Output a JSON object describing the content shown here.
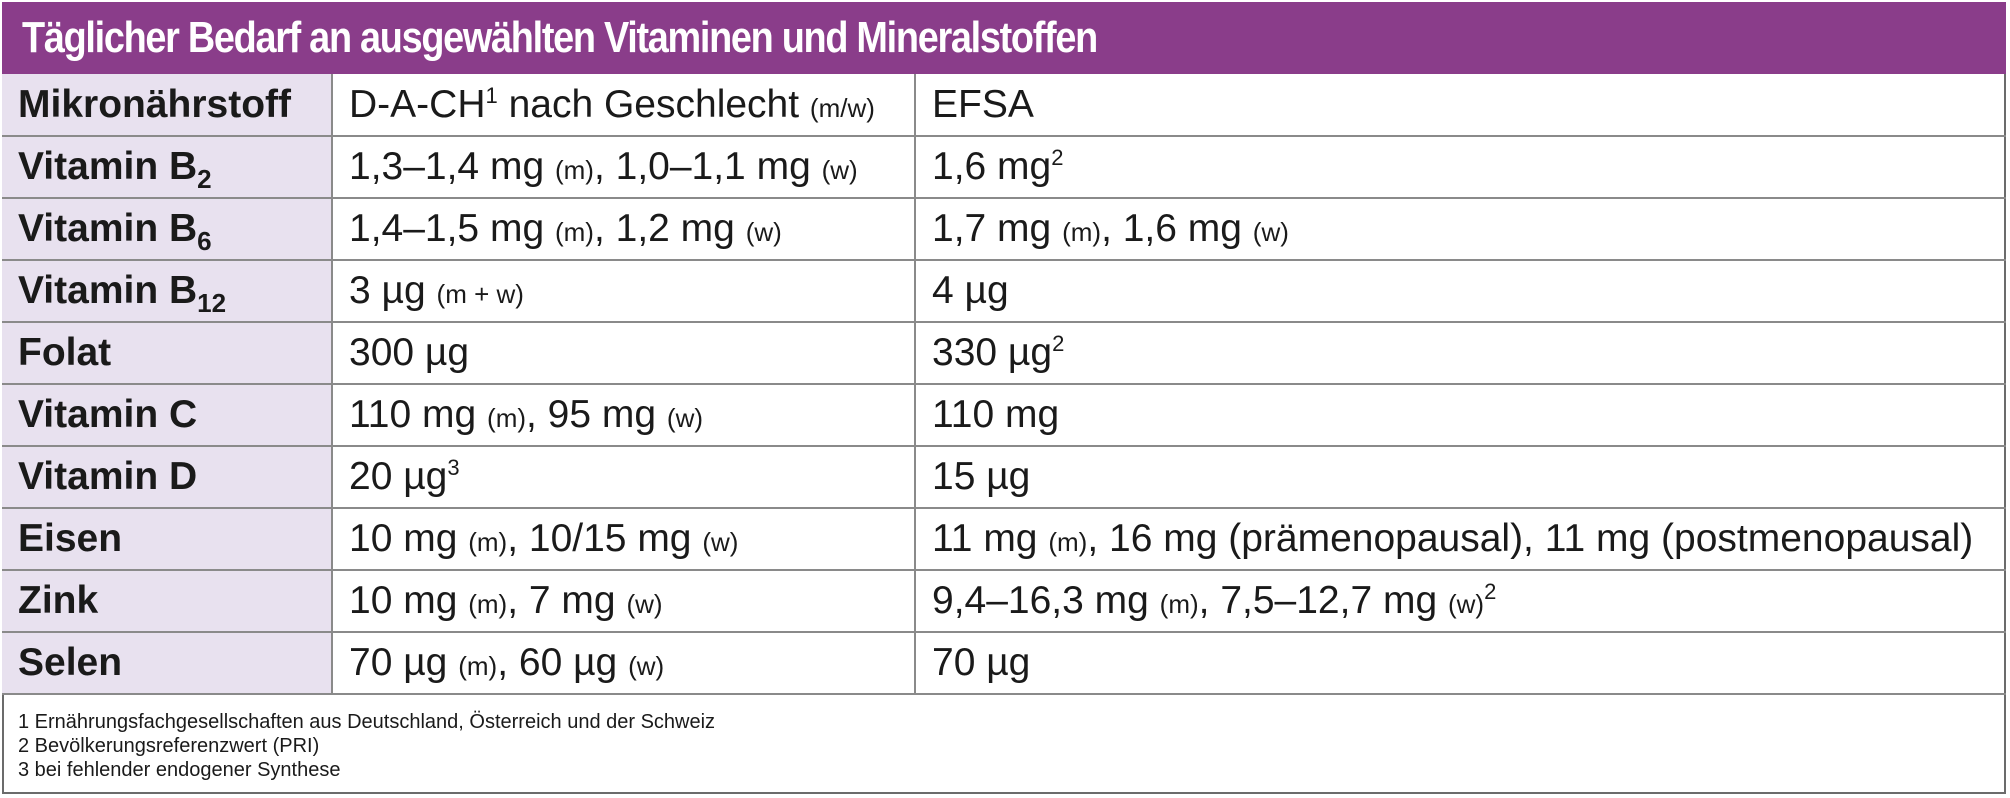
{
  "title": "Täglicher Bedarf an ausgewählten Vitaminen und Mineralstoffen",
  "header": {
    "col1": "Mikronährstoff",
    "col2_main": "D-A-CH",
    "col2_sup": "1",
    "col2_rest": " nach Geschlecht ",
    "col2_small": "(m/w)",
    "col3": "EFSA"
  },
  "rows": [
    {
      "name": "Vitamin B",
      "sub": "2",
      "dach": [
        {
          "t": "1,3–1,4 mg "
        },
        {
          "t": "(m)",
          "s": "sm"
        },
        {
          "t": ", 1,0–1,1 mg "
        },
        {
          "t": "(w)",
          "s": "sm"
        }
      ],
      "efsa": [
        {
          "t": "1,6 mg"
        },
        {
          "t": "2",
          "s": "sup"
        }
      ]
    },
    {
      "name": "Vitamin B",
      "sub": "6",
      "dach": [
        {
          "t": "1,4–1,5 mg "
        },
        {
          "t": "(m)",
          "s": "sm"
        },
        {
          "t": ", 1,2 mg "
        },
        {
          "t": "(w)",
          "s": "sm"
        }
      ],
      "efsa": [
        {
          "t": "1,7 mg "
        },
        {
          "t": "(m)",
          "s": "sm"
        },
        {
          "t": ", 1,6 mg "
        },
        {
          "t": "(w)",
          "s": "sm"
        }
      ]
    },
    {
      "name": "Vitamin B",
      "sub": "12",
      "dach": [
        {
          "t": "3 µg "
        },
        {
          "t": "(m + w)",
          "s": "sm"
        }
      ],
      "efsa": [
        {
          "t": "4 µg"
        }
      ]
    },
    {
      "name": "Folat",
      "sub": "",
      "dach": [
        {
          "t": "300 µg"
        }
      ],
      "efsa": [
        {
          "t": "330 µg"
        },
        {
          "t": "2",
          "s": "sup"
        }
      ]
    },
    {
      "name": "Vitamin C",
      "sub": "",
      "dach": [
        {
          "t": "110 mg "
        },
        {
          "t": "(m)",
          "s": "sm"
        },
        {
          "t": ", 95 mg "
        },
        {
          "t": "(w)",
          "s": "sm"
        }
      ],
      "efsa": [
        {
          "t": "110 mg"
        }
      ]
    },
    {
      "name": "Vitamin D",
      "sub": "",
      "dach": [
        {
          "t": "20 µg"
        },
        {
          "t": "3",
          "s": "sup"
        }
      ],
      "efsa": [
        {
          "t": "15 µg"
        }
      ]
    },
    {
      "name": "Eisen",
      "sub": "",
      "dach": [
        {
          "t": "10 mg "
        },
        {
          "t": "(m)",
          "s": "sm"
        },
        {
          "t": ", 10/15 mg "
        },
        {
          "t": "(w)",
          "s": "sm"
        }
      ],
      "efsa": [
        {
          "t": "11 mg "
        },
        {
          "t": "(m)",
          "s": "sm"
        },
        {
          "t": ", 16 mg (prämenopausal), 11 mg (postmenopausal)"
        }
      ]
    },
    {
      "name": "Zink",
      "sub": "",
      "dach": [
        {
          "t": "10 mg "
        },
        {
          "t": "(m)",
          "s": "sm"
        },
        {
          "t": ", 7 mg "
        },
        {
          "t": "(w)",
          "s": "sm"
        }
      ],
      "efsa": [
        {
          "t": "9,4–16,3 mg "
        },
        {
          "t": "(m)",
          "s": "sm"
        },
        {
          "t": ", 7,5–12,7 mg "
        },
        {
          "t": "(w)",
          "s": "sm"
        },
        {
          "t": "2",
          "s": "sup"
        }
      ]
    },
    {
      "name": "Selen",
      "sub": "",
      "dach": [
        {
          "t": "70 µg "
        },
        {
          "t": "(m)",
          "s": "sm"
        },
        {
          "t": ", 60 µg "
        },
        {
          "t": "(w)",
          "s": "sm"
        }
      ],
      "efsa": [
        {
          "t": "70 µg"
        }
      ]
    }
  ],
  "footnotes": [
    "1 Ernährungsfachgesellschaften aus Deutschland, Österreich und der Schweiz",
    "2 Bevölkerungsreferenzwert (PRI)",
    "3 bei fehlender endogener Synthese"
  ],
  "colors": {
    "title_bg": "#8a3d8a",
    "label_bg": "#e8e1ef",
    "border": "#8a8a8a"
  }
}
